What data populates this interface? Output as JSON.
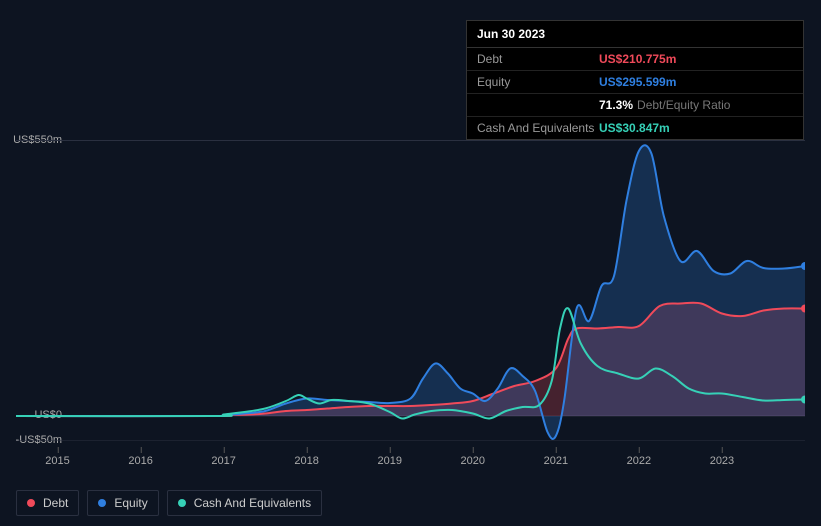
{
  "tooltip": {
    "date": "Jun 30 2023",
    "rows": [
      {
        "label": "Debt",
        "value": "US$210.775m",
        "color": "#f04a5a"
      },
      {
        "label": "Equity",
        "value": "US$295.599m",
        "color": "#2f7fe0"
      },
      {
        "label": "",
        "value": "71.3%",
        "secondary": "Debt/Equity Ratio",
        "color": "#ffffff"
      },
      {
        "label": "Cash And Equivalents",
        "value": "US$30.847m",
        "color": "#36d1b7"
      }
    ]
  },
  "chart": {
    "type": "area",
    "background_color": "#0d1421",
    "grid_color": "#2a3040",
    "xrange": [
      2014.5,
      2024.0
    ],
    "yrange": [
      -50,
      550
    ],
    "y_axis": {
      "ticks": [
        {
          "v": 550,
          "label": "US$550m"
        },
        {
          "v": 0,
          "label": "US$0"
        },
        {
          "v": -50,
          "label": "-US$50m"
        }
      ],
      "label_fontsize": 11,
      "label_color": "#aaaaaa"
    },
    "x_axis": {
      "ticks": [
        2015,
        2016,
        2017,
        2018,
        2019,
        2020,
        2021,
        2022,
        2023
      ],
      "label_fontsize": 11,
      "label_color": "#aaaaaa"
    },
    "series": [
      {
        "name": "Debt",
        "color": "#f04a5a",
        "fill_opacity": 0.25,
        "line_width": 2,
        "data": [
          [
            2014.5,
            0
          ],
          [
            2016.9,
            0
          ],
          [
            2017.0,
            2
          ],
          [
            2017.3,
            3
          ],
          [
            2017.5,
            5
          ],
          [
            2017.75,
            10
          ],
          [
            2018.0,
            12
          ],
          [
            2018.25,
            15
          ],
          [
            2018.5,
            18
          ],
          [
            2018.75,
            20
          ],
          [
            2019.0,
            20
          ],
          [
            2019.25,
            20
          ],
          [
            2019.5,
            22
          ],
          [
            2019.75,
            25
          ],
          [
            2020.0,
            30
          ],
          [
            2020.25,
            45
          ],
          [
            2020.5,
            60
          ],
          [
            2020.75,
            70
          ],
          [
            2021.0,
            95
          ],
          [
            2021.15,
            155
          ],
          [
            2021.25,
            175
          ],
          [
            2021.5,
            175
          ],
          [
            2021.75,
            178
          ],
          [
            2022.0,
            180
          ],
          [
            2022.25,
            220
          ],
          [
            2022.5,
            225
          ],
          [
            2022.75,
            225
          ],
          [
            2023.0,
            205
          ],
          [
            2023.25,
            200
          ],
          [
            2023.5,
            211
          ],
          [
            2023.75,
            215
          ],
          [
            2024.0,
            215
          ]
        ]
      },
      {
        "name": "Equity",
        "color": "#2f7fe0",
        "fill_opacity": 0.25,
        "line_width": 2,
        "data": [
          [
            2014.5,
            0
          ],
          [
            2016.8,
            0
          ],
          [
            2017.0,
            2
          ],
          [
            2017.25,
            5
          ],
          [
            2017.5,
            10
          ],
          [
            2017.75,
            25
          ],
          [
            2018.0,
            35
          ],
          [
            2018.25,
            32
          ],
          [
            2018.5,
            30
          ],
          [
            2018.75,
            28
          ],
          [
            2019.0,
            26
          ],
          [
            2019.25,
            35
          ],
          [
            2019.4,
            75
          ],
          [
            2019.55,
            105
          ],
          [
            2019.7,
            85
          ],
          [
            2019.85,
            55
          ],
          [
            2020.0,
            45
          ],
          [
            2020.15,
            30
          ],
          [
            2020.3,
            55
          ],
          [
            2020.45,
            95
          ],
          [
            2020.6,
            80
          ],
          [
            2020.75,
            50
          ],
          [
            2020.9,
            -32
          ],
          [
            2021.0,
            -40
          ],
          [
            2021.1,
            30
          ],
          [
            2021.25,
            215
          ],
          [
            2021.4,
            190
          ],
          [
            2021.55,
            260
          ],
          [
            2021.7,
            280
          ],
          [
            2021.85,
            430
          ],
          [
            2022.0,
            530
          ],
          [
            2022.15,
            525
          ],
          [
            2022.3,
            400
          ],
          [
            2022.5,
            310
          ],
          [
            2022.7,
            330
          ],
          [
            2022.9,
            290
          ],
          [
            2023.1,
            285
          ],
          [
            2023.3,
            310
          ],
          [
            2023.5,
            296
          ],
          [
            2023.75,
            295
          ],
          [
            2024.0,
            300
          ]
        ]
      },
      {
        "name": "Cash And Equivalents",
        "color": "#36d1b7",
        "fill_opacity": 0.0,
        "line_width": 2,
        "data": [
          [
            2014.5,
            0
          ],
          [
            2016.9,
            0
          ],
          [
            2017.0,
            3
          ],
          [
            2017.25,
            8
          ],
          [
            2017.5,
            15
          ],
          [
            2017.75,
            30
          ],
          [
            2017.9,
            42
          ],
          [
            2018.0,
            35
          ],
          [
            2018.15,
            25
          ],
          [
            2018.3,
            32
          ],
          [
            2018.5,
            30
          ],
          [
            2018.75,
            25
          ],
          [
            2019.0,
            8
          ],
          [
            2019.15,
            -5
          ],
          [
            2019.3,
            3
          ],
          [
            2019.5,
            10
          ],
          [
            2019.75,
            12
          ],
          [
            2020.0,
            5
          ],
          [
            2020.2,
            -5
          ],
          [
            2020.4,
            10
          ],
          [
            2020.6,
            18
          ],
          [
            2020.8,
            22
          ],
          [
            2020.95,
            70
          ],
          [
            2021.05,
            175
          ],
          [
            2021.15,
            215
          ],
          [
            2021.3,
            145
          ],
          [
            2021.5,
            100
          ],
          [
            2021.75,
            85
          ],
          [
            2022.0,
            75
          ],
          [
            2022.2,
            95
          ],
          [
            2022.4,
            80
          ],
          [
            2022.6,
            55
          ],
          [
            2022.8,
            45
          ],
          [
            2023.0,
            45
          ],
          [
            2023.25,
            38
          ],
          [
            2023.5,
            31
          ],
          [
            2023.75,
            32
          ],
          [
            2024.0,
            33
          ]
        ]
      }
    ],
    "end_markers": {
      "radius": 4
    },
    "legend": {
      "items": [
        {
          "label": "Debt",
          "color": "#f04a5a"
        },
        {
          "label": "Equity",
          "color": "#2f7fe0"
        },
        {
          "label": "Cash And Equivalents",
          "color": "#36d1b7"
        }
      ],
      "fontsize": 12,
      "border_color": "#2a3040"
    }
  }
}
